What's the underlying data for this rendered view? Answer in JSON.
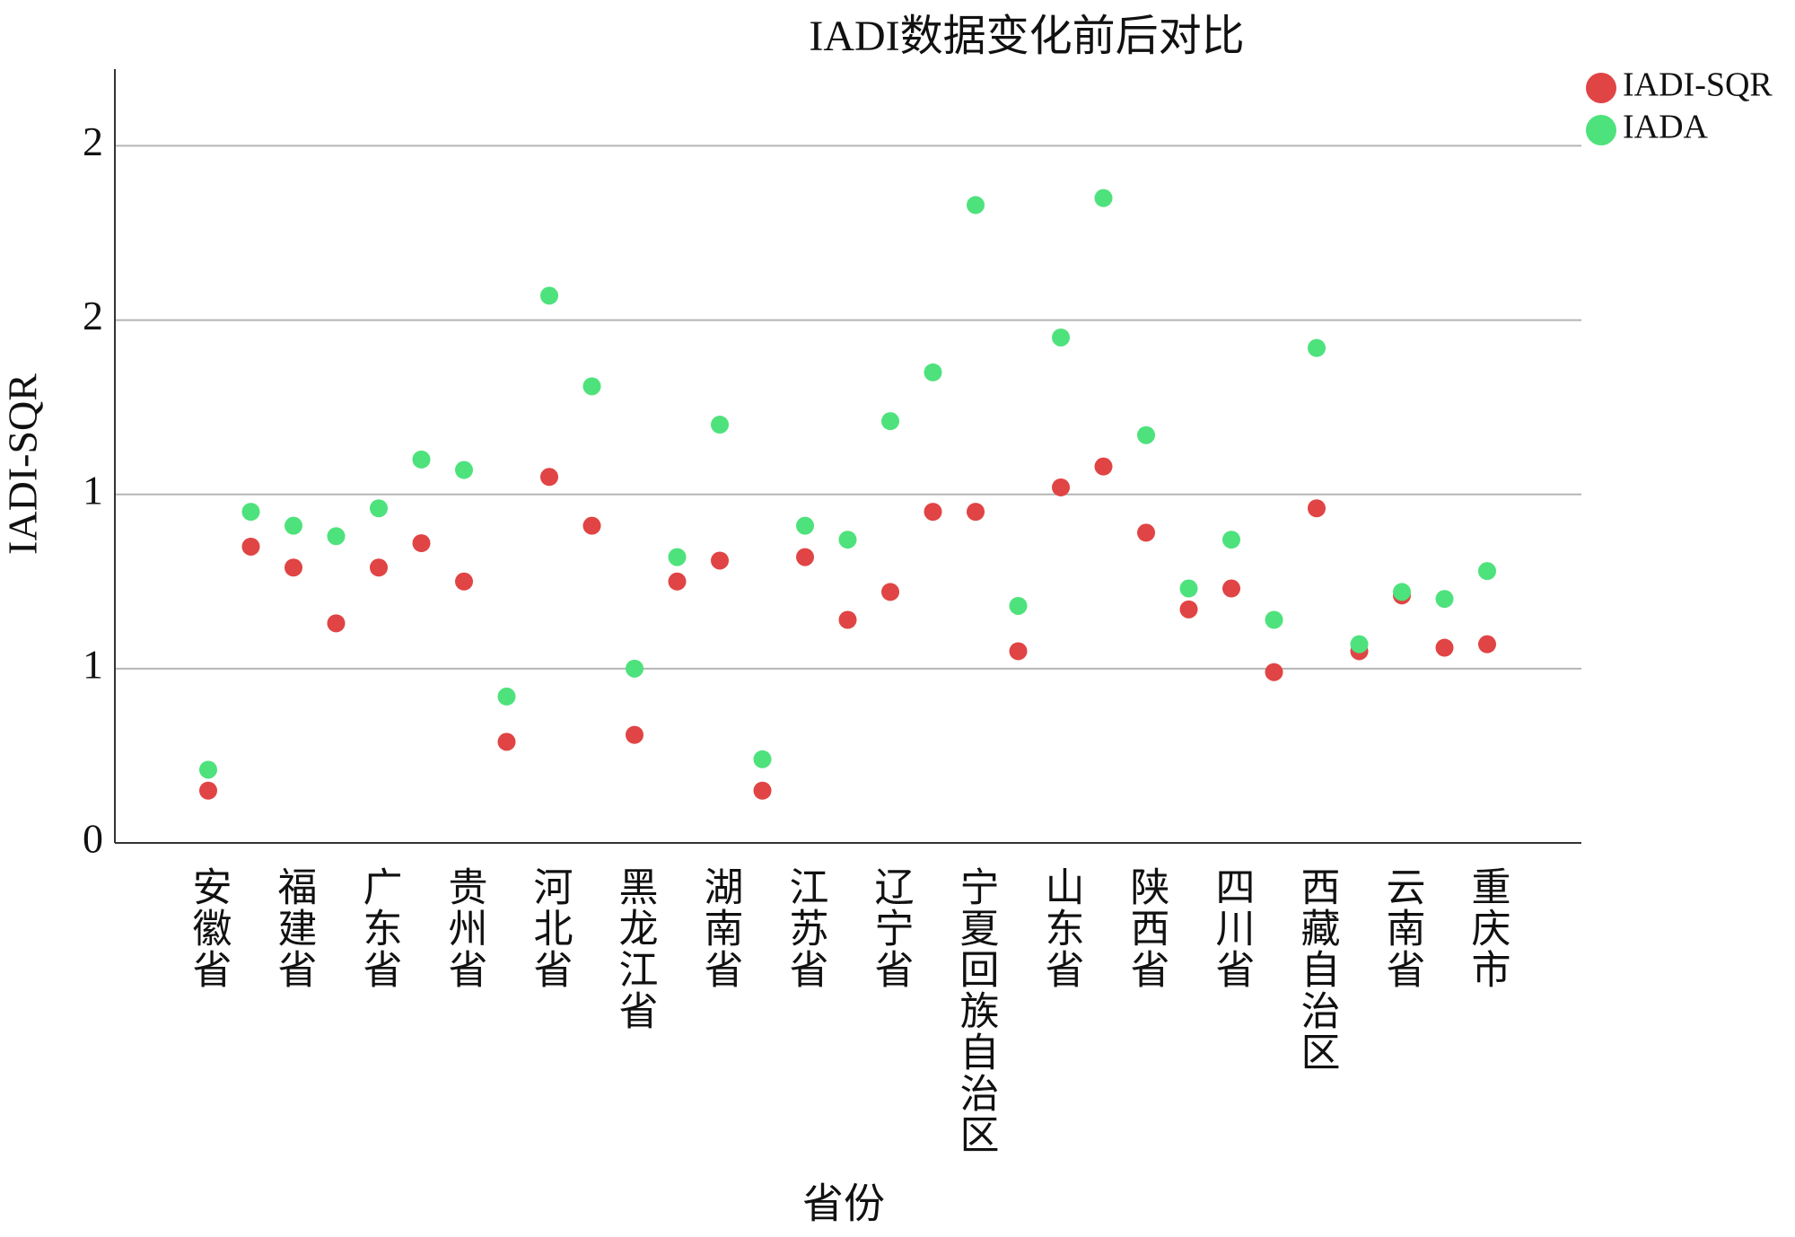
{
  "chart_data": {
    "type": "scatter",
    "title": "IADI数据变化前后对比",
    "x_label": "省份",
    "y_label": "IADI-SQR",
    "categories": [
      "安徽省",
      null,
      "福建省",
      null,
      "广东省",
      null,
      "贵州省",
      null,
      "河北省",
      null,
      "黑龙江省",
      null,
      "湖南省",
      null,
      "江苏省",
      null,
      "辽宁省",
      null,
      "宁夏回族自治区",
      null,
      "山东省",
      null,
      "陕西省",
      null,
      "四川省",
      null,
      "西藏自治区",
      null,
      "云南省",
      null,
      "重庆市"
    ],
    "series": [
      {
        "name": "IADI-SQR",
        "color": "#e04444",
        "values": [
          0.15,
          0.85,
          0.79,
          0.63,
          0.79,
          0.86,
          0.75,
          0.29,
          1.05,
          0.91,
          0.31,
          0.75,
          0.81,
          0.15,
          0.82,
          0.64,
          0.72,
          0.95,
          0.95,
          0.55,
          1.02,
          1.08,
          0.89,
          0.67,
          0.73,
          0.49,
          0.96,
          0.55,
          0.71,
          0.56,
          0.57
        ]
      },
      {
        "name": "IADA",
        "color": "#4ee27c",
        "values": [
          0.21,
          0.95,
          0.91,
          0.88,
          0.96,
          1.1,
          1.07,
          0.42,
          1.57,
          1.31,
          0.5,
          0.82,
          1.2,
          0.24,
          0.91,
          0.87,
          1.21,
          1.35,
          1.83,
          0.68,
          1.45,
          1.85,
          1.17,
          0.73,
          0.87,
          0.64,
          1.42,
          0.57,
          0.72,
          0.7,
          0.78
        ]
      }
    ],
    "ylim": [
      0,
      2.22
    ],
    "yticks": [
      0,
      {
        "value": 0.5,
        "label": "1"
      },
      {
        "value": 1,
        "label": "1"
      },
      {
        "value": 1.5,
        "label": "2"
      },
      {
        "value": 2,
        "label": "2"
      }
    ],
    "grid": true
  }
}
